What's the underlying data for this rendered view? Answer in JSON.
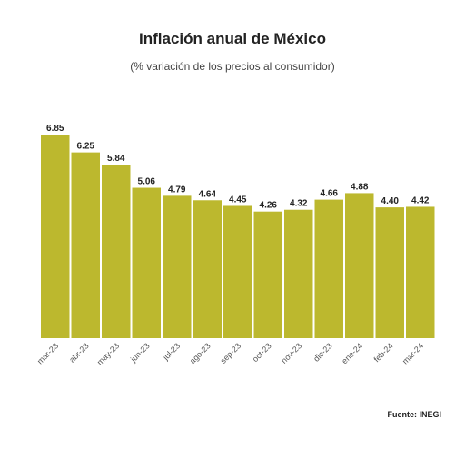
{
  "chart_data": {
    "type": "bar",
    "title": "Inflación anual de México",
    "subtitle": "(% variación de los precios al consumidor)",
    "categories": [
      "mar-23",
      "abr-23",
      "may-23",
      "jun-23",
      "jul-23",
      "ago-23",
      "sep-23",
      "oct-23",
      "nov-23",
      "dic-23",
      "ene-24",
      "feb-24",
      "mar-24"
    ],
    "values": [
      6.85,
      6.25,
      5.84,
      5.06,
      4.79,
      4.64,
      4.45,
      4.26,
      4.32,
      4.66,
      4.88,
      4.4,
      4.42
    ],
    "value_labels": [
      "6.85",
      "6.25",
      "5.84",
      "5.06",
      "4.79",
      "4.64",
      "4.45",
      "4.26",
      "4.32",
      "4.66",
      "4.88",
      "4.40",
      "4.42"
    ],
    "ylim": [
      0,
      6.85
    ],
    "grid": false,
    "bar_color": "#bcb82e",
    "source": "Fuente: INEGI"
  }
}
